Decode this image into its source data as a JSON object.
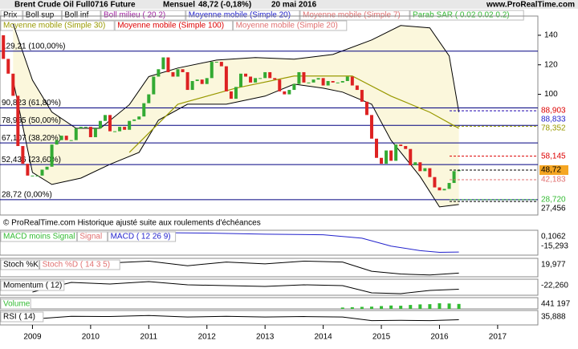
{
  "header": {
    "title": "Brent Crude Oil Full0716 Future",
    "period": "Mensuel",
    "quote": "48,72 (-0,18%)",
    "date": "20 mai 2016",
    "site": "www.ProRealTime.com",
    "legend_row1": [
      {
        "text": "Prix",
        "color": "#000000"
      },
      {
        "text": "Boll sup",
        "color": "#000000"
      },
      {
        "text": "Boll inf",
        "color": "#000000"
      },
      {
        "text": "Boll milieu ( 20 2)",
        "color": "#a020a0"
      },
      {
        "text": "Moyenne mobile (Simple 20)",
        "color": "#2222cc"
      },
      {
        "text": "Moyenne mobile (Simple 7)",
        "color": "#e07070"
      },
      {
        "text": "Parab SAR ( 0.02 0.02 0.2)",
        "color": "#33bb33"
      }
    ],
    "legend_row2": [
      {
        "text": "Moyenne mobile (Simple 30)",
        "color": "#999900"
      },
      {
        "text": "Moyenne mobile (Simple 100)",
        "color": "#dd0000"
      },
      {
        "text": "Moyenne mobile (Simple 20)",
        "color": "#e07070"
      }
    ],
    "note": "© ProRealTime.com Historique ajusté suite aux roulements d'échéances"
  },
  "chart_data": {
    "type": "candlestick",
    "up_color": "#33aa33",
    "down_color": "#dd2222",
    "xlim": [
      -0.7,
      110.3
    ],
    "xticks": [
      {
        "value": 6,
        "label": "2009"
      },
      {
        "value": 18,
        "label": "2010"
      },
      {
        "value": 30,
        "label": "2011"
      },
      {
        "value": 42,
        "label": "2012"
      },
      {
        "value": 54,
        "label": "2013"
      },
      {
        "value": 66,
        "label": "2014"
      },
      {
        "value": 78,
        "label": "2015"
      },
      {
        "value": 90,
        "label": "2016"
      },
      {
        "value": 102,
        "label": "2017"
      }
    ],
    "ylim": [
      18.3,
      153
    ],
    "yticks": [
      100,
      120,
      140
    ],
    "open": [
      140,
      124,
      114,
      99,
      65,
      53,
      45,
      45,
      45,
      49,
      51,
      66,
      69,
      72,
      69,
      69,
      77,
      78,
      78,
      71,
      77,
      82,
      86,
      75,
      75,
      78,
      76,
      82,
      83,
      85,
      94,
      100,
      112,
      117,
      125,
      115,
      112,
      117,
      115,
      103,
      109,
      110,
      107,
      111,
      122,
      122,
      119,
      102,
      97,
      105,
      114,
      112,
      108,
      111,
      111,
      115,
      111,
      110,
      102,
      100,
      103,
      107,
      115,
      108,
      108,
      110,
      111,
      106,
      109,
      108,
      108,
      109,
      112,
      106,
      103,
      95,
      86,
      70,
      57,
      53,
      62,
      55,
      66,
      65,
      63,
      52,
      54,
      48,
      50,
      44,
      37,
      35,
      36,
      40,
      48
    ],
    "close": [
      124,
      114,
      99,
      65,
      53,
      45,
      45,
      45,
      49,
      51,
      66,
      69,
      72,
      69,
      69,
      77,
      78,
      78,
      71,
      77,
      82,
      86,
      75,
      75,
      78,
      76,
      82,
      83,
      85,
      94,
      100,
      112,
      117,
      125,
      115,
      112,
      117,
      115,
      103,
      109,
      110,
      107,
      111,
      122,
      122,
      119,
      102,
      97,
      105,
      114,
      112,
      108,
      111,
      111,
      115,
      111,
      110,
      102,
      100,
      103,
      107,
      115,
      108,
      108,
      110,
      111,
      106,
      109,
      108,
      108,
      109,
      112,
      106,
      103,
      95,
      86,
      70,
      57,
      53,
      62,
      55,
      66,
      65,
      63,
      52,
      54,
      48,
      50,
      44,
      37,
      35,
      36,
      40,
      48,
      48.72
    ],
    "bands": {
      "color": "#fbf7dc",
      "upper": {
        "x": [
          2,
          6,
          10,
          15,
          20,
          26,
          30,
          36,
          44,
          52,
          60,
          68,
          76,
          82,
          88,
          92,
          94
        ],
        "values": [
          147.7,
          109.6,
          88,
          77,
          77,
          93,
          112,
          117.8,
          123.2,
          124.9,
          123.8,
          127,
          136.8,
          146.6,
          145,
          126,
          88
        ]
      },
      "lower": {
        "x": [
          2,
          6,
          10,
          16,
          22,
          28,
          32,
          38,
          46,
          54,
          60,
          66,
          70,
          76,
          80,
          86,
          90,
          94
        ],
        "values": [
          109.6,
          47.1,
          39,
          43.3,
          52.6,
          60.7,
          82.5,
          93.3,
          93.3,
          98.8,
          106.9,
          104.2,
          101.5,
          93.3,
          68.9,
          44.4,
          23.8,
          25.4
        ]
      }
    },
    "series": [
      {
        "name": "Moyenne mobile (Simple 30)",
        "color": "#999900",
        "x": [
          26,
          36,
          48,
          60,
          72,
          80,
          88,
          94
        ],
        "values": [
          60.7,
          93.3,
          104.2,
          112.4,
          112.4,
          98.8,
          87.9,
          77
        ]
      }
    ],
    "levels": [
      {
        "value": 129.21,
        "label": "129,21 (100,00%)"
      },
      {
        "value": 90.823,
        "label": "90,823 (61,80%)"
      },
      {
        "value": 78.965,
        "label": "78,965 (50,00%)"
      },
      {
        "value": 67.107,
        "label": "67,107 (38,20%)"
      },
      {
        "value": 52.436,
        "label": "52,436 (23,60%)"
      },
      {
        "value": 28.72,
        "label": "28,72 (0,00%)"
      }
    ],
    "right_labels": [
      {
        "value": 88.903,
        "label": "88,903",
        "color": "#dd0000"
      },
      {
        "value": 88.833,
        "label": "88,833",
        "color": "#2222cc"
      },
      {
        "value": 78.352,
        "label": "78,352",
        "color": "#999900"
      },
      {
        "value": 58.145,
        "label": "58,145",
        "color": "#dd0000"
      },
      {
        "value": 48.72,
        "label": "48,72",
        "color": "#000000"
      },
      {
        "value": 42.183,
        "label": "42,183",
        "color": "#e07070"
      },
      {
        "value": 28.72,
        "label": "28,720",
        "color": "#33bb33"
      },
      {
        "value": 27.456,
        "label": "27,456",
        "color": "#000000"
      }
    ]
  },
  "panels": [
    {
      "labels": [
        {
          "text": "MACD moins Signal",
          "color": "#33bb33"
        },
        {
          "text": "Signal",
          "color": "#e07070"
        },
        {
          "text": "MACD ( 12 26 9)",
          "color": "#2222cc"
        }
      ],
      "ylim": [
        -18,
        4
      ],
      "color": "#2222cc",
      "x": [
        6,
        20,
        30,
        42,
        54,
        66,
        74,
        80,
        86,
        90,
        94
      ],
      "values": [
        -1,
        1,
        2,
        1.5,
        0.5,
        0,
        -3,
        -10,
        -14,
        -15.5,
        -15.293
      ],
      "right": [
        {
          "value": 0.1062,
          "label": "0,1062"
        },
        {
          "value": -15.293,
          "label": "-15,293"
        }
      ]
    },
    {
      "labels": [
        {
          "text": "Stoch %K",
          "color": "#000000"
        },
        {
          "text": "Stoch %D ( 14 3 5)",
          "color": "#e07070"
        }
      ],
      "ylim": [
        0,
        100
      ],
      "color": "#000000",
      "x": [
        6,
        14,
        22,
        30,
        38,
        46,
        54,
        62,
        70,
        76,
        82,
        88,
        94
      ],
      "values": [
        40,
        70,
        75,
        85,
        60,
        80,
        70,
        85,
        80,
        30,
        15,
        10,
        19.977
      ],
      "right": [
        {
          "value": 19.977,
          "label": "19,977"
        }
      ]
    },
    {
      "labels": [
        {
          "text": "Momentum ( 12)",
          "color": "#000000"
        }
      ],
      "ylim": [
        -60,
        40
      ],
      "color": "#000000",
      "x": [
        6,
        14,
        22,
        30,
        38,
        46,
        54,
        62,
        70,
        76,
        82,
        88,
        94
      ],
      "values": [
        -40,
        20,
        10,
        25,
        5,
        0,
        -5,
        5,
        0,
        -45,
        -50,
        -30,
        -22.26
      ],
      "right": [
        {
          "value": -22.26,
          "label": "-22,260"
        }
      ]
    },
    {
      "labels": [
        {
          "text": "Volume",
          "color": "#33bb33"
        }
      ],
      "ylim": [
        0,
        1000000
      ],
      "color": "#33bb33",
      "x": [
        70,
        72,
        74,
        76,
        78,
        80,
        82,
        84,
        86,
        88,
        90,
        92,
        94
      ],
      "values": [
        120000,
        150000,
        180000,
        200000,
        250000,
        300000,
        280000,
        350000,
        400000,
        420000,
        500000,
        480000,
        441197
      ],
      "right": [
        {
          "value": 441197,
          "label": "441 197"
        }
      ]
    },
    {
      "labels": [
        {
          "text": "RSI ( 14)",
          "color": "#000000"
        }
      ],
      "ylim": [
        0,
        100
      ],
      "color": "#000000",
      "x": [
        6,
        14,
        22,
        30,
        38,
        46,
        54,
        62,
        70,
        76,
        82,
        88,
        94
      ],
      "values": [
        40,
        60,
        58,
        65,
        55,
        60,
        55,
        58,
        55,
        30,
        32,
        30,
        35.888
      ],
      "right": [
        {
          "value": 35.888,
          "label": "35,888"
        }
      ]
    }
  ]
}
